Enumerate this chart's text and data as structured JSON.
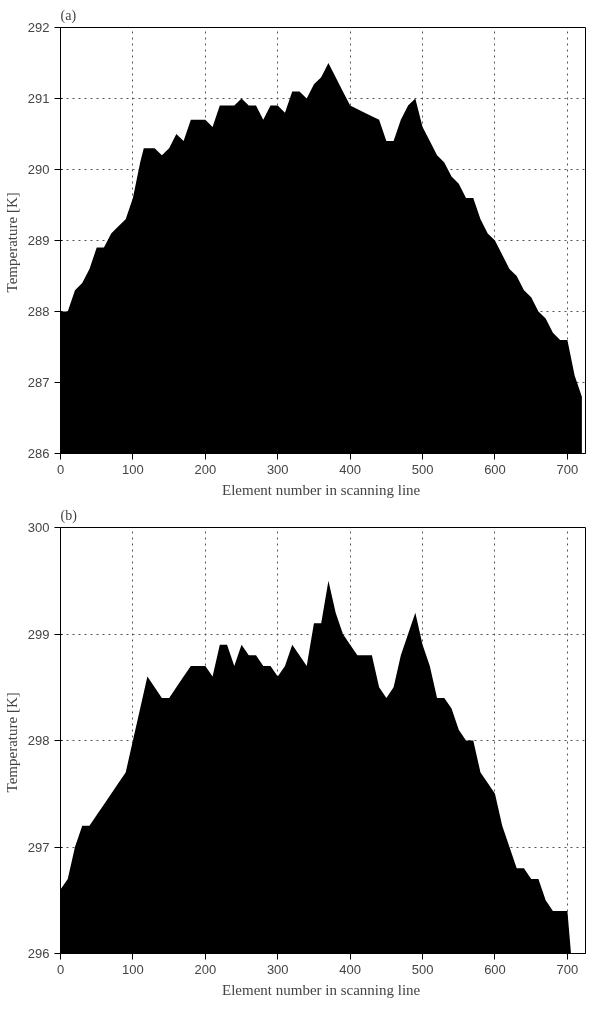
{
  "chart_data": [
    {
      "type": "area",
      "title": "(a)",
      "xlabel": "Element number  in scanning line",
      "ylabel": "Temperature  [K]",
      "color": "#000000",
      "x": [
        0,
        10,
        20,
        30,
        40,
        50,
        60,
        70,
        80,
        90,
        100,
        110,
        115,
        130,
        140,
        150,
        160,
        170,
        180,
        200,
        210,
        220,
        240,
        250,
        260,
        270,
        280,
        290,
        300,
        310,
        320,
        330,
        340,
        350,
        360,
        370,
        380,
        390,
        400,
        420,
        440,
        450,
        460,
        470,
        480,
        490,
        500,
        510,
        520,
        530,
        540,
        550,
        560,
        570,
        580,
        590,
        600,
        610,
        620,
        630,
        640,
        650,
        660,
        670,
        680,
        690,
        700,
        710,
        720
      ],
      "values": [
        288.0,
        288.0,
        288.3,
        288.4,
        288.6,
        288.9,
        288.9,
        289.1,
        289.2,
        289.3,
        289.6,
        290.1,
        290.3,
        290.3,
        290.2,
        290.3,
        290.5,
        290.4,
        290.7,
        290.7,
        290.6,
        290.9,
        290.9,
        291.0,
        290.9,
        290.9,
        290.7,
        290.9,
        290.9,
        290.8,
        291.1,
        291.1,
        291.0,
        291.2,
        291.3,
        291.5,
        291.3,
        291.1,
        290.9,
        290.8,
        290.7,
        290.4,
        290.4,
        290.7,
        290.9,
        291.0,
        290.6,
        290.4,
        290.2,
        290.1,
        289.9,
        289.8,
        289.6,
        289.6,
        289.3,
        289.1,
        289.0,
        288.8,
        288.6,
        288.5,
        288.3,
        288.2,
        288.0,
        287.9,
        287.7,
        287.6,
        287.6,
        287.1,
        286.8
      ],
      "xlim": [
        0,
        725
      ],
      "xticks": [
        0,
        100,
        200,
        300,
        400,
        500,
        600,
        700
      ],
      "ylim": [
        286,
        292
      ],
      "yticks": [
        286,
        287,
        288,
        289,
        290,
        291,
        292
      ],
      "grid": true
    },
    {
      "type": "area",
      "title": "(b)",
      "xlabel": "Element number  in scanning line",
      "ylabel": "Temperature  [K]",
      "color": "#000000",
      "x": [
        0,
        10,
        20,
        30,
        40,
        50,
        60,
        70,
        80,
        90,
        100,
        110,
        120,
        130,
        140,
        150,
        160,
        170,
        180,
        200,
        210,
        220,
        230,
        240,
        250,
        260,
        270,
        280,
        290,
        300,
        310,
        320,
        330,
        340,
        350,
        360,
        370,
        380,
        390,
        400,
        410,
        420,
        430,
        440,
        450,
        460,
        470,
        480,
        490,
        500,
        510,
        520,
        530,
        540,
        550,
        560,
        570,
        580,
        590,
        600,
        610,
        620,
        630,
        640,
        650,
        660,
        670,
        680,
        690,
        700,
        705
      ],
      "values": [
        296.6,
        296.7,
        297.0,
        297.2,
        297.2,
        297.3,
        297.4,
        297.5,
        297.6,
        297.7,
        298.0,
        298.3,
        298.6,
        298.5,
        298.4,
        298.4,
        298.5,
        298.6,
        298.7,
        298.7,
        298.6,
        298.9,
        298.9,
        298.7,
        298.9,
        298.8,
        298.8,
        298.7,
        298.7,
        298.6,
        298.7,
        298.9,
        298.8,
        298.7,
        299.1,
        299.1,
        299.5,
        299.2,
        299.0,
        298.9,
        298.8,
        298.8,
        298.8,
        298.5,
        298.4,
        298.5,
        298.8,
        299.0,
        299.2,
        298.9,
        298.7,
        298.4,
        298.4,
        298.3,
        298.1,
        298.0,
        298.0,
        297.7,
        297.6,
        297.5,
        297.2,
        297.0,
        296.8,
        296.8,
        296.7,
        296.7,
        296.5,
        296.4,
        296.4,
        296.4,
        296.0
      ],
      "xlim": [
        0,
        725
      ],
      "xticks": [
        0,
        100,
        200,
        300,
        400,
        500,
        600,
        700
      ],
      "ylim": [
        296,
        300
      ],
      "yticks": [
        296,
        297,
        298,
        299,
        300
      ],
      "grid": true
    }
  ]
}
